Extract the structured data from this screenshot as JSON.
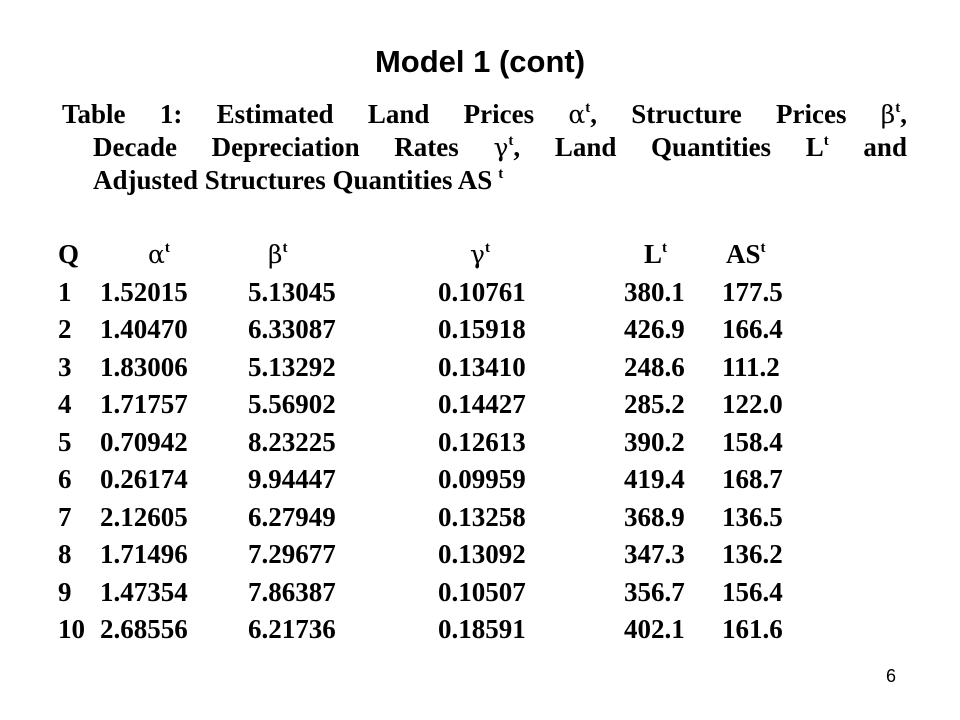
{
  "title": "Model 1 (cont)",
  "caption": {
    "line1": [
      "Table",
      "1:",
      "Estimated",
      "Land",
      "Prices"
    ],
    "alpha_symbol": "α",
    "sup_t": "t",
    "line1b": [
      ",",
      "Structure",
      "Prices"
    ],
    "beta_symbol": "β",
    "line2": [
      "Decade",
      "Depreciation",
      "Rates"
    ],
    "gamma_symbol": "γ",
    "line2b": [
      "Land",
      "Quantities"
    ],
    "L_symbol": "L",
    "and_word": "and",
    "line3": "Adjusted Structures Quantities AS"
  },
  "table": {
    "headers": [
      {
        "label": "Q",
        "sup": ""
      },
      {
        "label": "α",
        "sup": "t"
      },
      {
        "label": "β",
        "sup": "t"
      },
      {
        "label": "γ",
        "sup": "t"
      },
      {
        "label": "L",
        "sup": "t"
      },
      {
        "label": "AS",
        "sup": "t"
      }
    ],
    "rows": [
      [
        "1",
        "1.52015",
        "5.13045",
        "0.10761",
        "380.1",
        "177.5"
      ],
      [
        "2",
        "1.40470",
        "6.33087",
        "0.15918",
        "426.9",
        "166.4"
      ],
      [
        "3",
        "1.83006",
        "5.13292",
        "0.13410",
        "248.6",
        "111.2"
      ],
      [
        "4",
        "1.71757",
        "5.56902",
        "0.14427",
        "285.2",
        "122.0"
      ],
      [
        "5",
        "0.70942",
        "8.23225",
        "0.12613",
        "390.2",
        "158.4"
      ],
      [
        "6",
        "0.26174",
        "9.94447",
        "0.09959",
        "419.4",
        "168.7"
      ],
      [
        "7",
        "2.12605",
        "6.27949",
        "0.13258",
        "368.9",
        "136.5"
      ],
      [
        "8",
        "1.71496",
        "7.29677",
        "0.13092",
        "347.3",
        "136.2"
      ],
      [
        "9",
        "1.47354",
        "7.86387",
        "0.10507",
        "356.7",
        "156.4"
      ],
      [
        "10",
        "2.68556",
        "6.21736",
        "0.18591",
        "402.1",
        "161.6"
      ]
    ]
  },
  "page_number": "6"
}
